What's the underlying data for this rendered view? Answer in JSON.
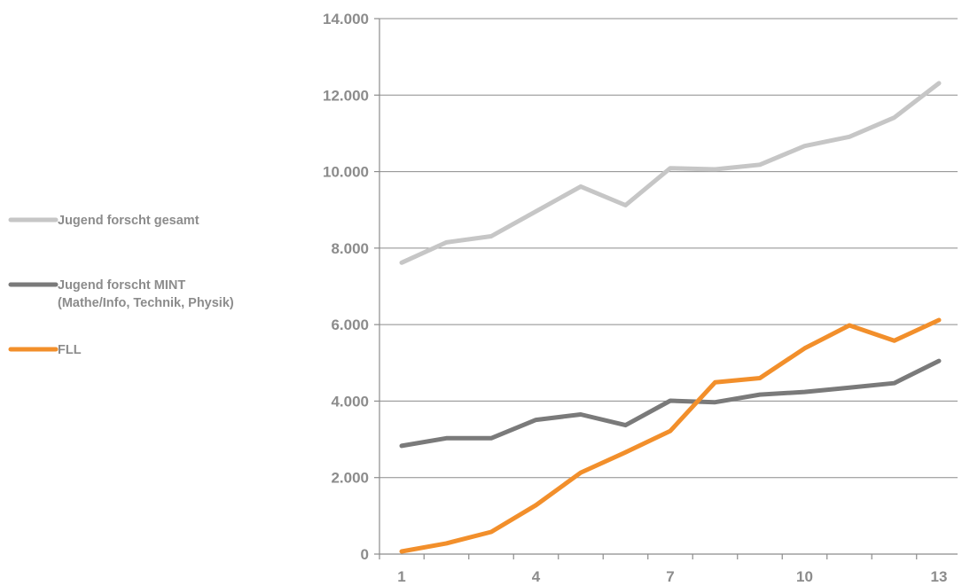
{
  "chart_data": {
    "type": "line",
    "title": "",
    "xlabel": "",
    "ylabel": "",
    "x": [
      1,
      2,
      3,
      4,
      5,
      6,
      7,
      8,
      9,
      10,
      11,
      12,
      13
    ],
    "x_tick_labels": [
      "1",
      "4",
      "7",
      "10",
      "13"
    ],
    "y_tick_labels": [
      "0",
      "2.000",
      "4.000",
      "6.000",
      "8.000",
      "10.000",
      "12.000",
      "14.000"
    ],
    "ylim": [
      0,
      14000
    ],
    "grid": "horizontal",
    "legend_position": "left",
    "series": [
      {
        "name": "Jugend forscht gesamt",
        "color": "#c6c6c6",
        "values": [
          7620,
          8150,
          8310,
          8960,
          9610,
          9120,
          10090,
          10060,
          10180,
          10670,
          10910,
          11410,
          12310
        ]
      },
      {
        "name": "Jugend forscht MINT",
        "name_line2": "(Mathe/Info, Technik, Physik)",
        "color": "#7a7a7a",
        "values": [
          2830,
          3030,
          3030,
          3510,
          3650,
          3370,
          4010,
          3970,
          4170,
          4240,
          4350,
          4470,
          5050
        ]
      },
      {
        "name": "FLL",
        "color": "#f28f2b",
        "values": [
          70,
          280,
          580,
          1280,
          2130,
          2660,
          3220,
          4490,
          4600,
          5380,
          5980,
          5580,
          6120
        ]
      }
    ]
  }
}
